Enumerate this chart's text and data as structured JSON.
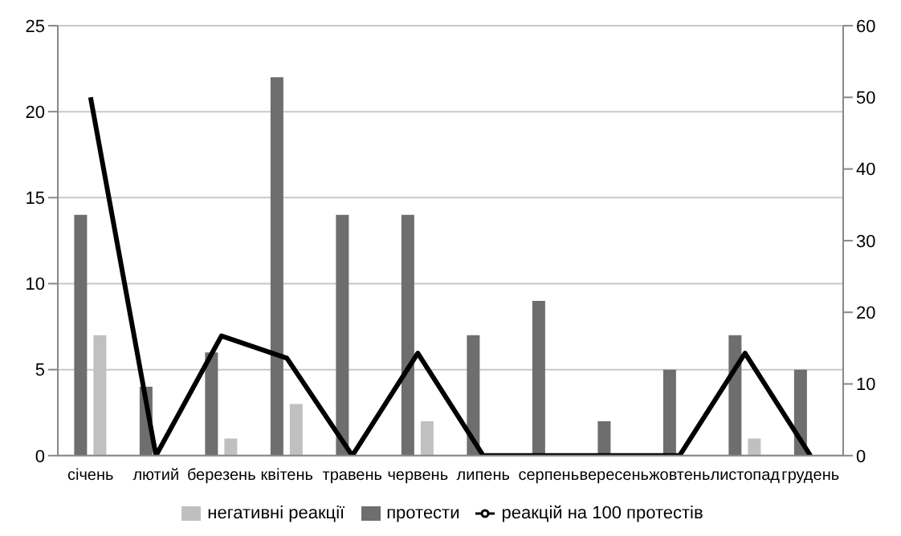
{
  "chart_data": {
    "type": "bar",
    "categories": [
      "січень",
      "лютий",
      "березень",
      "квітень",
      "травень",
      "червень",
      "липень",
      "серпень",
      "вересень",
      "жовтень",
      "листопад",
      "грудень"
    ],
    "series": [
      {
        "name": "протести",
        "color": "#6e6e6e",
        "values": [
          14,
          4,
          6,
          22,
          14,
          14,
          7,
          9,
          2,
          5,
          7,
          5
        ]
      },
      {
        "name": "негативні реакції",
        "color": "#c0c0c0",
        "values": [
          7,
          0,
          1,
          3,
          0,
          2,
          0,
          0,
          0,
          0,
          1,
          0
        ]
      },
      {
        "name": "реакцій на 100 протестів",
        "type": "line",
        "axis": "y2",
        "color": "#000000",
        "values": [
          50,
          0,
          16.7,
          13.6,
          0,
          14.3,
          0,
          0,
          0,
          0,
          14.3,
          0
        ]
      }
    ],
    "ylim": [
      0,
      25
    ],
    "yticks": [
      0,
      5,
      10,
      15,
      20,
      25
    ],
    "y2lim": [
      0,
      60
    ],
    "y2ticks": [
      0,
      10,
      20,
      30,
      40,
      50,
      60
    ],
    "grid": "y",
    "legend": "bottom",
    "marker": "none",
    "line_style": "solid"
  }
}
